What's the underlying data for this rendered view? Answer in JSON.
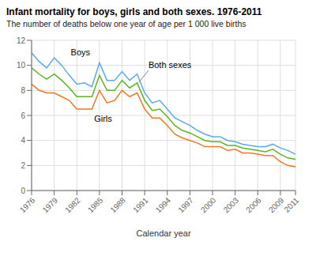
{
  "chart_data": {
    "type": "line",
    "title": "Infant mortality for boys, girls and both sexes. 1976-2011",
    "subtitle": "The number of deaths below one year of age per 1 000 live births",
    "xlabel": "Calendar year",
    "x": [
      1976,
      1977,
      1978,
      1979,
      1980,
      1981,
      1982,
      1983,
      1984,
      1985,
      1986,
      1987,
      1988,
      1989,
      1990,
      1991,
      1992,
      1993,
      1994,
      1995,
      1996,
      1997,
      1998,
      1999,
      2000,
      2001,
      2002,
      2003,
      2004,
      2005,
      2006,
      2007,
      2008,
      2009,
      2010,
      2011
    ],
    "series": [
      {
        "name": "Boys",
        "color": "#5aabee",
        "values": [
          11.0,
          10.3,
          9.8,
          10.6,
          10.0,
          9.2,
          8.5,
          8.6,
          8.3,
          10.2,
          8.8,
          8.8,
          9.5,
          8.8,
          9.3,
          7.8,
          7.0,
          7.2,
          6.5,
          5.8,
          5.5,
          5.2,
          4.8,
          4.5,
          4.3,
          4.3,
          4.0,
          3.9,
          3.7,
          3.6,
          3.5,
          3.5,
          3.7,
          3.4,
          3.2,
          2.9
        ]
      },
      {
        "name": "Girls",
        "color": "#f07820",
        "values": [
          8.5,
          8.0,
          7.8,
          7.8,
          7.5,
          7.2,
          6.5,
          6.5,
          6.5,
          8.0,
          7.0,
          7.2,
          8.0,
          7.5,
          7.8,
          6.5,
          5.8,
          5.8,
          5.2,
          4.5,
          4.2,
          4.0,
          3.8,
          3.5,
          3.5,
          3.5,
          3.2,
          3.3,
          3.0,
          3.0,
          2.9,
          2.8,
          2.8,
          2.3,
          2.0,
          1.9
        ]
      },
      {
        "name": "Both sexes",
        "color": "#5ab520",
        "values": [
          9.8,
          9.3,
          8.9,
          9.3,
          8.8,
          8.2,
          7.5,
          7.5,
          7.5,
          9.2,
          8.0,
          8.0,
          8.8,
          8.2,
          8.6,
          7.2,
          6.4,
          6.5,
          5.9,
          5.2,
          4.8,
          4.6,
          4.3,
          4.0,
          3.9,
          3.9,
          3.6,
          3.6,
          3.4,
          3.3,
          3.2,
          3.1,
          3.3,
          2.9,
          2.6,
          2.5
        ]
      }
    ],
    "xlim": [
      1976,
      2011
    ],
    "ylim": [
      0,
      12
    ],
    "xticks": [
      1976,
      1979,
      1982,
      1985,
      1988,
      1991,
      1994,
      1997,
      2000,
      2003,
      2006,
      2009,
      2011
    ],
    "yticks": [
      0,
      2,
      4,
      6,
      8,
      10,
      12
    ],
    "grid": true,
    "annotations": [
      {
        "text": "Boys",
        "x": 1981.2,
        "y": 10.6
      },
      {
        "text": "Girls",
        "x": 1984.3,
        "y": 6.15
      },
      {
        "text": "Both sexes",
        "x": 1991.5,
        "y": 9.6,
        "arrow_x": 1990.2,
        "arrow_y": 8.62
      }
    ]
  }
}
